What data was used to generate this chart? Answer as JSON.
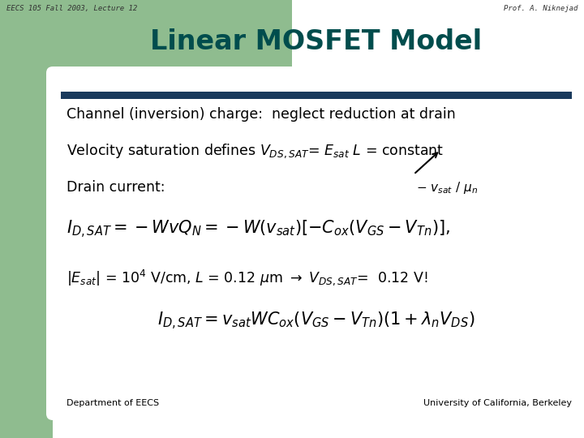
{
  "title": "Linear MOSFET Model",
  "header_left": "EECS 105 Fall 2003, Lecture 12",
  "header_right": "Prof. A. Niknejad",
  "footer_left": "Department of EECS",
  "footer_right": "University of California, Berkeley",
  "bg_color": "#ffffff",
  "green_bg": "#8fbc8f",
  "title_color": "#004d4d",
  "line_color": "#1a3a5c",
  "header_color": "#555555"
}
